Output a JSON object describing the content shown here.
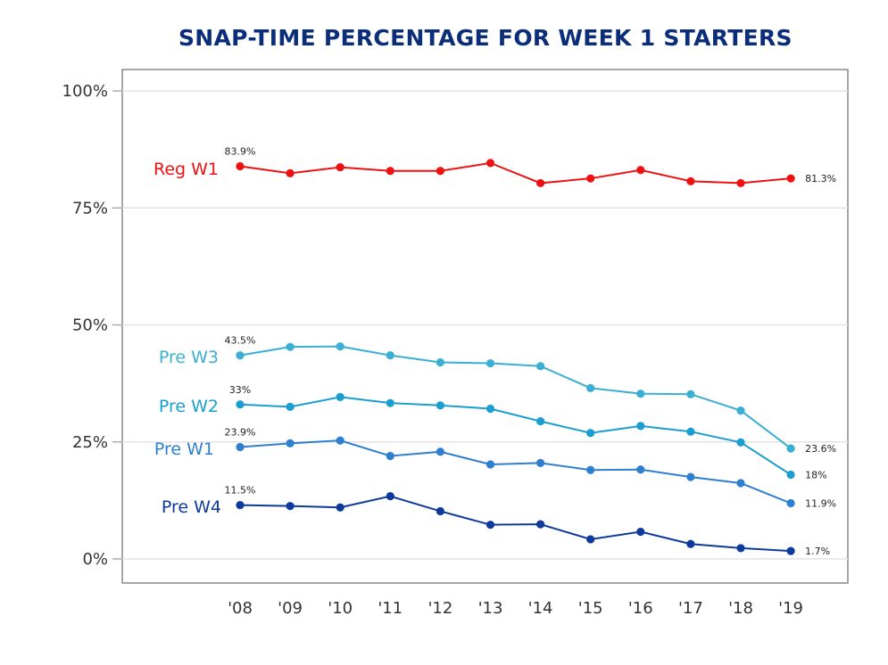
{
  "chart_data": {
    "type": "line",
    "title": "SNAP-TIME PERCENTAGE FOR WEEK 1 STARTERS",
    "xlabel": "",
    "ylabel": "",
    "ylim": [
      0,
      100
    ],
    "grid": true,
    "categories": [
      "'08",
      "'09",
      "'10",
      "'11",
      "'12",
      "'13",
      "'14",
      "'15",
      "'16",
      "'17",
      "'18",
      "'19"
    ],
    "y_ticks": [
      {
        "value": 0,
        "label": "0%"
      },
      {
        "value": 25,
        "label": "25%"
      },
      {
        "value": 50,
        "label": "50%"
      },
      {
        "value": 75,
        "label": "75%"
      },
      {
        "value": 100,
        "label": "100%"
      }
    ],
    "series": [
      {
        "name": "Reg W1",
        "color": "#ee1111",
        "values": [
          83.9,
          82.4,
          83.7,
          82.9,
          82.9,
          84.6,
          80.3,
          81.3,
          83.1,
          80.7,
          80.3,
          81.3
        ],
        "first_label": "83.9%",
        "last_label": "81.3%"
      },
      {
        "name": "Pre W3",
        "color": "#3aaed3",
        "values": [
          43.5,
          45.3,
          45.4,
          43.5,
          42.0,
          41.8,
          41.2,
          36.5,
          35.3,
          35.2,
          31.7,
          23.6
        ],
        "first_label": "43.5%",
        "last_label": "23.6%"
      },
      {
        "name": "Pre W2",
        "color": "#1a9ed0",
        "values": [
          33.0,
          32.5,
          34.6,
          33.3,
          32.8,
          32.1,
          29.4,
          26.9,
          28.4,
          27.2,
          24.9,
          18.0
        ],
        "first_label": "33%",
        "last_label": "18%"
      },
      {
        "name": "Pre W1",
        "color": "#2f7fd0",
        "values": [
          23.9,
          24.7,
          25.3,
          22.0,
          22.9,
          20.2,
          20.5,
          19.0,
          19.1,
          17.5,
          16.2,
          11.9
        ],
        "first_label": "23.9%",
        "last_label": "11.9%"
      },
      {
        "name": "Pre W4",
        "color": "#0d3a9c",
        "values": [
          11.5,
          11.3,
          11.0,
          13.4,
          10.2,
          7.3,
          7.4,
          4.2,
          5.8,
          3.2,
          2.3,
          1.7
        ],
        "first_label": "11.5%",
        "last_label": "1.7%"
      }
    ]
  }
}
